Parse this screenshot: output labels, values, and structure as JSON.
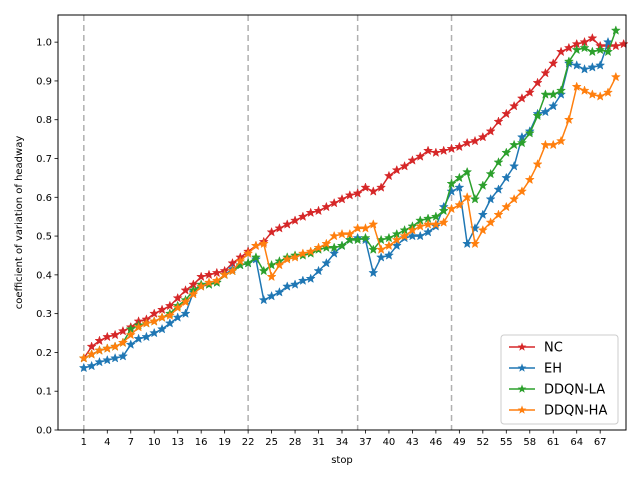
{
  "chart_data": {
    "type": "line",
    "xlabel": "stop",
    "ylabel": "coefficient of variation of headway",
    "xlim": [
      -2.3,
      70.3
    ],
    "ylim": [
      0.0,
      1.07
    ],
    "xticks": [
      1,
      4,
      7,
      10,
      13,
      16,
      19,
      22,
      25,
      28,
      31,
      34,
      37,
      40,
      43,
      46,
      49,
      52,
      55,
      58,
      61,
      64,
      67
    ],
    "yticks": [
      0.0,
      0.1,
      0.2,
      0.3,
      0.4,
      0.5,
      0.6,
      0.7,
      0.8,
      0.9,
      1.0
    ],
    "vlines": [
      1,
      22,
      36,
      48
    ],
    "legend_position": "lower-right",
    "series": [
      {
        "name": "NC",
        "color": "#d62728",
        "values": [
          0.185,
          0.215,
          0.23,
          0.24,
          0.245,
          0.255,
          0.265,
          0.28,
          0.285,
          0.3,
          0.31,
          0.32,
          0.34,
          0.36,
          0.375,
          0.395,
          0.4,
          0.405,
          0.41,
          0.43,
          0.445,
          0.46,
          0.475,
          0.485,
          0.51,
          0.52,
          0.53,
          0.54,
          0.55,
          0.56,
          0.565,
          0.575,
          0.585,
          0.595,
          0.605,
          0.61,
          0.625,
          0.615,
          0.625,
          0.655,
          0.67,
          0.68,
          0.695,
          0.705,
          0.72,
          0.715,
          0.72,
          0.725,
          0.73,
          0.74,
          0.745,
          0.755,
          0.77,
          0.795,
          0.815,
          0.835,
          0.855,
          0.87,
          0.895,
          0.92,
          0.945,
          0.975,
          0.985,
          0.995,
          1.0,
          1.01,
          0.99,
          0.99,
          0.99,
          0.995
        ]
      },
      {
        "name": "EH",
        "color": "#1f77b4",
        "values": [
          0.16,
          0.165,
          0.175,
          0.18,
          0.185,
          0.19,
          0.22,
          0.235,
          0.24,
          0.25,
          0.26,
          0.275,
          0.29,
          0.3,
          0.355,
          0.37,
          0.375,
          0.38,
          0.4,
          0.415,
          0.425,
          0.43,
          0.44,
          0.335,
          0.345,
          0.355,
          0.37,
          0.375,
          0.385,
          0.39,
          0.41,
          0.43,
          0.455,
          0.475,
          0.49,
          0.495,
          0.49,
          0.405,
          0.445,
          0.45,
          0.475,
          0.495,
          0.5,
          0.5,
          0.51,
          0.525,
          0.575,
          0.615,
          0.625,
          0.48,
          0.52,
          0.555,
          0.595,
          0.62,
          0.65,
          0.68,
          0.755,
          0.77,
          0.815,
          0.82,
          0.835,
          0.865,
          0.945,
          0.94,
          0.93,
          0.935,
          0.94,
          1.0
        ]
      },
      {
        "name": "DDQN-LA",
        "color": "#2ca02c",
        "values": [
          0.185,
          0.195,
          0.205,
          0.21,
          0.215,
          0.225,
          0.26,
          0.27,
          0.275,
          0.28,
          0.29,
          0.3,
          0.32,
          0.335,
          0.36,
          0.375,
          0.375,
          0.38,
          0.4,
          0.41,
          0.425,
          0.43,
          0.445,
          0.41,
          0.425,
          0.435,
          0.445,
          0.45,
          0.45,
          0.455,
          0.465,
          0.47,
          0.47,
          0.475,
          0.49,
          0.49,
          0.495,
          0.465,
          0.49,
          0.495,
          0.505,
          0.515,
          0.525,
          0.54,
          0.545,
          0.55,
          0.565,
          0.635,
          0.65,
          0.665,
          0.595,
          0.63,
          0.66,
          0.69,
          0.715,
          0.735,
          0.74,
          0.765,
          0.81,
          0.865,
          0.865,
          0.875,
          0.95,
          0.98,
          0.985,
          0.975,
          0.98,
          0.975,
          1.03
        ]
      },
      {
        "name": "DDQN-HA",
        "color": "#ff7f0e",
        "values": [
          0.185,
          0.195,
          0.205,
          0.21,
          0.215,
          0.225,
          0.245,
          0.265,
          0.275,
          0.28,
          0.29,
          0.295,
          0.315,
          0.33,
          0.35,
          0.37,
          0.38,
          0.385,
          0.4,
          0.41,
          0.435,
          0.455,
          0.475,
          0.48,
          0.395,
          0.425,
          0.44,
          0.445,
          0.455,
          0.46,
          0.47,
          0.48,
          0.5,
          0.505,
          0.505,
          0.52,
          0.52,
          0.53,
          0.465,
          0.475,
          0.49,
          0.5,
          0.515,
          0.525,
          0.53,
          0.53,
          0.535,
          0.57,
          0.58,
          0.6,
          0.48,
          0.515,
          0.535,
          0.555,
          0.575,
          0.595,
          0.615,
          0.645,
          0.685,
          0.735,
          0.735,
          0.745,
          0.8,
          0.885,
          0.875,
          0.865,
          0.86,
          0.87,
          0.91
        ]
      }
    ]
  }
}
